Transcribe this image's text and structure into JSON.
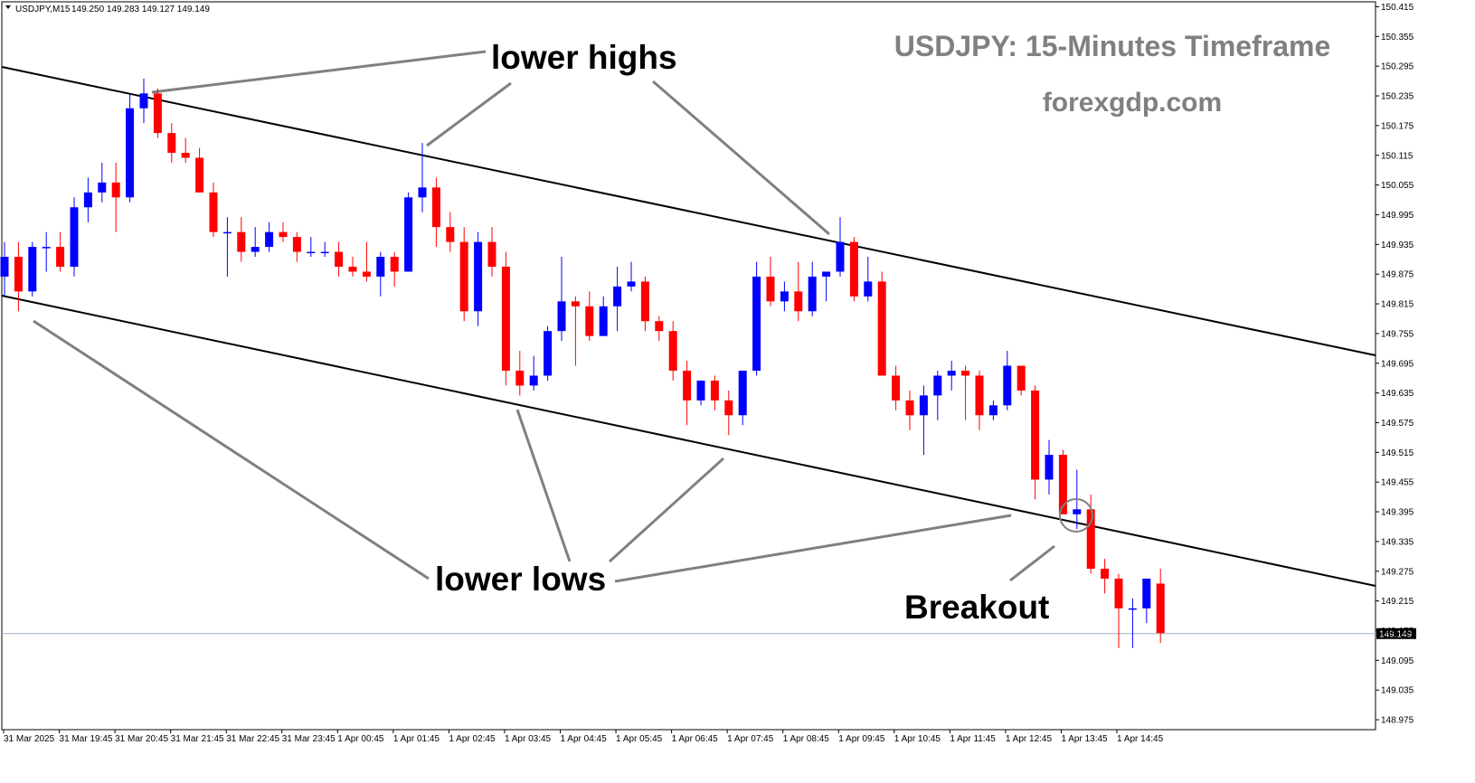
{
  "header": {
    "symbol": "USDJPY,M15",
    "ohlc": "149.250 149.283 149.127 149.149"
  },
  "watermark": {
    "title": "USDJPY: 15-Minutes Timeframe",
    "site": "forexgdp.com"
  },
  "annotations": {
    "lower_highs": "lower highs",
    "lower_lows": "lower lows",
    "breakout": "Breakout"
  },
  "colors": {
    "bull": "#0000ff",
    "bear": "#ff0000",
    "trendline": "#000000",
    "pointer": "#808080",
    "current_price_line": "#a0b0c0"
  },
  "chart_data": {
    "type": "candlestick",
    "symbol": "USDJPY",
    "timeframe": "M15",
    "current_price": 149.149,
    "current_price_label": "149.149",
    "ylim": [
      148.955,
      150.425
    ],
    "y_ticks": [
      "150.415",
      "150.355",
      "150.295",
      "150.235",
      "150.175",
      "150.115",
      "150.055",
      "149.995",
      "149.935",
      "149.875",
      "149.815",
      "149.755",
      "149.695",
      "149.635",
      "149.575",
      "149.515",
      "149.455",
      "149.395",
      "149.335",
      "149.275",
      "149.215",
      "149.155",
      "149.095",
      "149.035",
      "148.975"
    ],
    "x_ticks": [
      "31 Mar 2025",
      "31 Mar 19:45",
      "31 Mar 20:45",
      "31 Mar 21:45",
      "31 Mar 22:45",
      "31 Mar 23:45",
      "1 Apr 00:45",
      "1 Apr 01:45",
      "1 Apr 02:45",
      "1 Apr 03:45",
      "1 Apr 04:45",
      "1 Apr 05:45",
      "1 Apr 06:45",
      "1 Apr 07:45",
      "1 Apr 08:45",
      "1 Apr 09:45",
      "1 Apr 10:45",
      "1 Apr 11:45",
      "1 Apr 12:45",
      "1 Apr 13:45",
      "1 Apr 14:45"
    ],
    "candles": [
      {
        "o": 149.87,
        "h": 149.94,
        "l": 149.83,
        "c": 149.91
      },
      {
        "o": 149.91,
        "h": 149.94,
        "l": 149.8,
        "c": 149.84
      },
      {
        "o": 149.84,
        "h": 149.94,
        "l": 149.83,
        "c": 149.93
      },
      {
        "o": 149.93,
        "h": 149.96,
        "l": 149.88,
        "c": 149.93
      },
      {
        "o": 149.93,
        "h": 149.96,
        "l": 149.88,
        "c": 149.89
      },
      {
        "o": 149.89,
        "h": 150.03,
        "l": 149.87,
        "c": 150.01
      },
      {
        "o": 150.01,
        "h": 150.07,
        "l": 149.98,
        "c": 150.04
      },
      {
        "o": 150.04,
        "h": 150.1,
        "l": 150.02,
        "c": 150.06
      },
      {
        "o": 150.06,
        "h": 150.1,
        "l": 149.96,
        "c": 150.03
      },
      {
        "o": 150.03,
        "h": 150.24,
        "l": 150.02,
        "c": 150.21
      },
      {
        "o": 150.21,
        "h": 150.27,
        "l": 150.18,
        "c": 150.24
      },
      {
        "o": 150.24,
        "h": 150.25,
        "l": 150.15,
        "c": 150.16
      },
      {
        "o": 150.16,
        "h": 150.18,
        "l": 150.1,
        "c": 150.12
      },
      {
        "o": 150.12,
        "h": 150.15,
        "l": 150.1,
        "c": 150.11
      },
      {
        "o": 150.11,
        "h": 150.13,
        "l": 150.04,
        "c": 150.04
      },
      {
        "o": 150.04,
        "h": 150.06,
        "l": 149.95,
        "c": 149.96
      },
      {
        "o": 149.96,
        "h": 149.99,
        "l": 149.87,
        "c": 149.96
      },
      {
        "o": 149.96,
        "h": 149.99,
        "l": 149.9,
        "c": 149.92
      },
      {
        "o": 149.92,
        "h": 149.97,
        "l": 149.91,
        "c": 149.93
      },
      {
        "o": 149.93,
        "h": 149.98,
        "l": 149.92,
        "c": 149.96
      },
      {
        "o": 149.96,
        "h": 149.98,
        "l": 149.94,
        "c": 149.95
      },
      {
        "o": 149.95,
        "h": 149.96,
        "l": 149.9,
        "c": 149.92
      },
      {
        "o": 149.92,
        "h": 149.95,
        "l": 149.91,
        "c": 149.92
      },
      {
        "o": 149.92,
        "h": 149.94,
        "l": 149.91,
        "c": 149.92
      },
      {
        "o": 149.92,
        "h": 149.94,
        "l": 149.87,
        "c": 149.89
      },
      {
        "o": 149.89,
        "h": 149.91,
        "l": 149.87,
        "c": 149.88
      },
      {
        "o": 149.88,
        "h": 149.94,
        "l": 149.86,
        "c": 149.87
      },
      {
        "o": 149.87,
        "h": 149.92,
        "l": 149.83,
        "c": 149.91
      },
      {
        "o": 149.91,
        "h": 149.92,
        "l": 149.85,
        "c": 149.88
      },
      {
        "o": 149.88,
        "h": 150.04,
        "l": 149.88,
        "c": 150.03
      },
      {
        "o": 150.03,
        "h": 150.14,
        "l": 150.0,
        "c": 150.05
      },
      {
        "o": 150.05,
        "h": 150.07,
        "l": 149.93,
        "c": 149.97
      },
      {
        "o": 149.97,
        "h": 150.0,
        "l": 149.92,
        "c": 149.94
      },
      {
        "o": 149.94,
        "h": 149.97,
        "l": 149.78,
        "c": 149.8
      },
      {
        "o": 149.8,
        "h": 149.96,
        "l": 149.77,
        "c": 149.94
      },
      {
        "o": 149.94,
        "h": 149.97,
        "l": 149.87,
        "c": 149.89
      },
      {
        "o": 149.89,
        "h": 149.92,
        "l": 149.65,
        "c": 149.68
      },
      {
        "o": 149.68,
        "h": 149.72,
        "l": 149.63,
        "c": 149.65
      },
      {
        "o": 149.65,
        "h": 149.71,
        "l": 149.64,
        "c": 149.67
      },
      {
        "o": 149.67,
        "h": 149.77,
        "l": 149.66,
        "c": 149.76
      },
      {
        "o": 149.76,
        "h": 149.91,
        "l": 149.74,
        "c": 149.82
      },
      {
        "o": 149.82,
        "h": 149.83,
        "l": 149.69,
        "c": 149.81
      },
      {
        "o": 149.81,
        "h": 149.84,
        "l": 149.74,
        "c": 149.75
      },
      {
        "o": 149.75,
        "h": 149.83,
        "l": 149.75,
        "c": 149.81
      },
      {
        "o": 149.81,
        "h": 149.89,
        "l": 149.76,
        "c": 149.85
      },
      {
        "o": 149.85,
        "h": 149.9,
        "l": 149.84,
        "c": 149.86
      },
      {
        "o": 149.86,
        "h": 149.87,
        "l": 149.76,
        "c": 149.78
      },
      {
        "o": 149.78,
        "h": 149.79,
        "l": 149.74,
        "c": 149.76
      },
      {
        "o": 149.76,
        "h": 149.78,
        "l": 149.66,
        "c": 149.68
      },
      {
        "o": 149.68,
        "h": 149.7,
        "l": 149.57,
        "c": 149.62
      },
      {
        "o": 149.62,
        "h": 149.66,
        "l": 149.61,
        "c": 149.66
      },
      {
        "o": 149.66,
        "h": 149.67,
        "l": 149.6,
        "c": 149.62
      },
      {
        "o": 149.62,
        "h": 149.64,
        "l": 149.55,
        "c": 149.59
      },
      {
        "o": 149.59,
        "h": 149.68,
        "l": 149.57,
        "c": 149.68
      },
      {
        "o": 149.68,
        "h": 149.9,
        "l": 149.67,
        "c": 149.87
      },
      {
        "o": 149.87,
        "h": 149.91,
        "l": 149.81,
        "c": 149.82
      },
      {
        "o": 149.82,
        "h": 149.86,
        "l": 149.8,
        "c": 149.84
      },
      {
        "o": 149.84,
        "h": 149.9,
        "l": 149.78,
        "c": 149.8
      },
      {
        "o": 149.8,
        "h": 149.9,
        "l": 149.79,
        "c": 149.87
      },
      {
        "o": 149.87,
        "h": 149.88,
        "l": 149.82,
        "c": 149.88
      },
      {
        "o": 149.88,
        "h": 149.99,
        "l": 149.87,
        "c": 149.94
      },
      {
        "o": 149.94,
        "h": 149.95,
        "l": 149.82,
        "c": 149.83
      },
      {
        "o": 149.83,
        "h": 149.91,
        "l": 149.82,
        "c": 149.86
      },
      {
        "o": 149.86,
        "h": 149.88,
        "l": 149.67,
        "c": 149.67
      },
      {
        "o": 149.67,
        "h": 149.69,
        "l": 149.6,
        "c": 149.62
      },
      {
        "o": 149.62,
        "h": 149.64,
        "l": 149.56,
        "c": 149.59
      },
      {
        "o": 149.59,
        "h": 149.65,
        "l": 149.51,
        "c": 149.63
      },
      {
        "o": 149.63,
        "h": 149.68,
        "l": 149.58,
        "c": 149.67
      },
      {
        "o": 149.67,
        "h": 149.7,
        "l": 149.64,
        "c": 149.68
      },
      {
        "o": 149.68,
        "h": 149.69,
        "l": 149.58,
        "c": 149.67
      },
      {
        "o": 149.67,
        "h": 149.68,
        "l": 149.56,
        "c": 149.59
      },
      {
        "o": 149.59,
        "h": 149.62,
        "l": 149.58,
        "c": 149.61
      },
      {
        "o": 149.61,
        "h": 149.72,
        "l": 149.6,
        "c": 149.69
      },
      {
        "o": 149.69,
        "h": 149.69,
        "l": 149.63,
        "c": 149.64
      },
      {
        "o": 149.64,
        "h": 149.65,
        "l": 149.42,
        "c": 149.46
      },
      {
        "o": 149.46,
        "h": 149.54,
        "l": 149.43,
        "c": 149.51
      },
      {
        "o": 149.51,
        "h": 149.52,
        "l": 149.39,
        "c": 149.39
      },
      {
        "o": 149.39,
        "h": 149.48,
        "l": 149.36,
        "c": 149.4
      },
      {
        "o": 149.4,
        "h": 149.43,
        "l": 149.27,
        "c": 149.28
      },
      {
        "o": 149.28,
        "h": 149.3,
        "l": 149.23,
        "c": 149.26
      },
      {
        "o": 149.26,
        "h": 149.27,
        "l": 149.12,
        "c": 149.2
      },
      {
        "o": 149.2,
        "h": 149.22,
        "l": 149.12,
        "c": 149.2
      },
      {
        "o": 149.2,
        "h": 149.26,
        "l": 149.17,
        "c": 149.26
      },
      {
        "o": 149.25,
        "h": 149.28,
        "l": 149.13,
        "c": 149.15
      }
    ]
  }
}
